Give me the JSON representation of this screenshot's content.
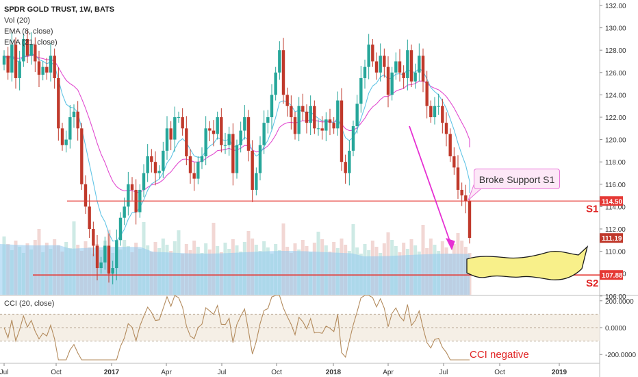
{
  "header": {
    "title": "SPDR GOLD TRUST, 1W, BATS",
    "indicators": [
      "Vol (20)",
      "EMA (8, close)",
      "EMA (21, close)"
    ]
  },
  "cci_panel": {
    "title": "CCI (20, close)"
  },
  "annotations": {
    "callout": "Broke Support S1",
    "s1_label": "S1",
    "s2_label": "S2",
    "cci_note": "CCI negative",
    "s1_price": "114.50",
    "s2_price": "107.88",
    "last_price": "111.19"
  },
  "colors": {
    "up": "#26a69a",
    "down": "#c0392b",
    "ema8": "#62c5e6",
    "ema21": "#e14bd0",
    "support": "#e53935",
    "volume": "#8fc8ee",
    "arrow": "#e62fd3",
    "zone_fill": "#f8f08a",
    "cci": "#b38b5d"
  },
  "chart_data": {
    "type": "candlestick",
    "title": "SPDR GOLD TRUST, 1W, BATS",
    "price_axis": {
      "ticks": [
        "132.00",
        "130.00",
        "128.00",
        "126.00",
        "124.00",
        "122.00",
        "120.00",
        "118.00",
        "116.00",
        "114.00",
        "112.00",
        "110.00",
        "108.00",
        "106.00"
      ],
      "range": [
        105.5,
        133
      ]
    },
    "cci_axis": {
      "ticks": [
        "200.0000",
        "0.0000",
        "-200.0000"
      ],
      "range": [
        -250,
        250
      ]
    },
    "date_axis": [
      "Jul",
      "Oct",
      "2017",
      "Apr",
      "Jul",
      "Oct",
      "2018",
      "Apr",
      "Jul",
      "Oct",
      "2019"
    ],
    "support_levels": [
      {
        "name": "S1",
        "value": 114.5
      },
      {
        "name": "S2",
        "value": 107.88
      }
    ],
    "last_close": 111.19,
    "candles_close": [
      127.5,
      126,
      128.5,
      125.5,
      127,
      129,
      127.5,
      128.5,
      127,
      125.8,
      126.5,
      126,
      127.5,
      125.5,
      121,
      119.5,
      120,
      122,
      122.5,
      121,
      116,
      114,
      112,
      110.5,
      108.5,
      109,
      110.5,
      108,
      108.5,
      111,
      113,
      114,
      116,
      115.5,
      113.5,
      115.5,
      117,
      118.5,
      118,
      117,
      117.2,
      119,
      121,
      120,
      122,
      122,
      121,
      118.5,
      117,
      116.5,
      118,
      118.5,
      121,
      120.8,
      120.5,
      122,
      119.5,
      119.5,
      120.5,
      117,
      119.5,
      120.8,
      122,
      119,
      115.5,
      117,
      119.5,
      121.5,
      122,
      124,
      126,
      128,
      124,
      123,
      122,
      120.5,
      123,
      122.5,
      121.5,
      123,
      121,
      121,
      120.8,
      121.8,
      121.5,
      121,
      123.5,
      118,
      117,
      119,
      121.2,
      123.2,
      125.5,
      126.5,
      128.5,
      127,
      126,
      127.5,
      126.5,
      124,
      126,
      127,
      126,
      125.5,
      128,
      125.2,
      126,
      127.5,
      125.2,
      123,
      122,
      123,
      123,
      121.5,
      120.5,
      118.5,
      117.5,
      115.5,
      115,
      114.5,
      111.2
    ]
  }
}
